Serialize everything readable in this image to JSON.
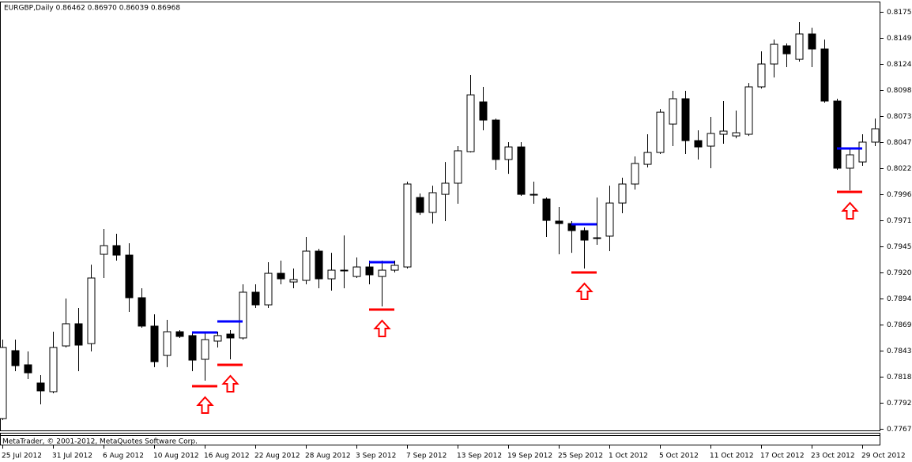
{
  "chart_data": {
    "type": "candlestick",
    "title": "EURGBP,Daily  0.86462 0.86970 0.86039 0.86968",
    "footer": "MetaTrader, © 2001-2012, MetaQuotes Software Corp.",
    "categories": [
      "25 Jul 2012",
      null,
      null,
      null,
      "31 Jul 2012",
      null,
      null,
      null,
      "6 Aug 2012",
      null,
      null,
      null,
      "10 Aug 2012",
      null,
      null,
      null,
      "16 Aug 2012",
      null,
      null,
      null,
      "22 Aug 2012",
      null,
      null,
      null,
      "28 Aug 2012",
      null,
      null,
      null,
      "3 Sep 2012",
      null,
      null,
      null,
      "7 Sep 2012",
      null,
      null,
      null,
      "13 Sep 2012",
      null,
      null,
      null,
      "19 Sep 2012",
      null,
      null,
      null,
      "25 Sep 2012",
      null,
      null,
      null,
      "1 Oct 2012",
      null,
      null,
      null,
      "5 Oct 2012",
      null,
      null,
      null,
      "11 Oct 2012",
      null,
      null,
      null,
      "17 Oct 2012",
      null,
      null,
      null,
      "23 Oct 2012",
      null,
      null,
      null,
      "29 Oct 2012",
      null
    ],
    "open": [
      0.7777,
      0.78435,
      0.78296,
      0.78118,
      0.78033,
      0.78481,
      0.78698,
      0.78504,
      0.79378,
      0.79463,
      0.7937,
      0.78953,
      0.78675,
      0.78388,
      0.7862,
      0.78582,
      0.7835,
      0.78528,
      0.78597,
      0.78559,
      0.79007,
      0.78883,
      0.79192,
      0.79107,
      0.79123,
      0.79409,
      0.79138,
      0.79216,
      0.79161,
      0.79254,
      0.79161,
      0.79223,
      0.79254,
      0.79934,
      0.79788,
      0.79965,
      0.80074,
      0.80383,
      0.8087,
      0.80692,
      0.80306,
      0.80429,
      0.79965,
      0.79919,
      0.79703,
      0.79679,
      0.7961,
      0.79533,
      0.79556,
      0.7988,
      0.80066,
      0.80259,
      0.80375,
      0.80653,
      0.80901,
      0.80491,
      0.80437,
      0.80553,
      0.80537,
      0.80553,
      0.81017,
      0.81241,
      0.81419,
      0.81287,
      0.81535,
      0.81388,
      0.80878,
      0.80221,
      0.80282,
      0.80476
    ],
    "high": [
      0.78543,
      0.78543,
      0.78427,
      0.78195,
      0.7862,
      0.78945,
      0.78852,
      0.79277,
      0.79625,
      0.79579,
      0.79486,
      0.79046,
      0.7879,
      0.78736,
      0.78636,
      0.7862,
      0.7862,
      0.7862,
      0.78636,
      0.79084,
      0.79084,
      0.79301,
      0.79316,
      0.79239,
      0.79548,
      0.79432,
      0.79393,
      0.79563,
      0.79347,
      0.79316,
      0.79316,
      0.79316,
      0.80089,
      0.79973,
      0.8005,
      0.80282,
      0.80437,
      0.81133,
      0.81017,
      0.80707,
      0.80476,
      0.80476,
      0.80089,
      0.79934,
      0.79842,
      0.79703,
      0.79641,
      0.79934,
      0.8005,
      0.80128,
      0.80336,
      0.80553,
      0.808,
      0.80978,
      0.80978,
      0.80592,
      0.80723,
      0.80878,
      0.80785,
      0.81055,
      0.81365,
      0.8148,
      0.81442,
      0.81651,
      0.81596,
      0.8148,
      0.80901,
      0.80414,
      0.80553,
      0.80707
    ],
    "low": [
      0.77755,
      0.78234,
      0.78157,
      0.77909,
      0.78017,
      0.78466,
      0.78234,
      0.78427,
      0.79146,
      0.79316,
      0.78814,
      0.78659,
      0.78273,
      0.78273,
      0.78559,
      0.78234,
      0.78141,
      0.78466,
      0.7835,
      0.78543,
      0.78852,
      0.78852,
      0.79084,
      0.79046,
      0.79084,
      0.79046,
      0.79022,
      0.79046,
      0.79146,
      0.79084,
      0.78868,
      0.792,
      0.79239,
      0.79764,
      0.79679,
      0.79703,
      0.79873,
      0.80375,
      0.80592,
      0.80205,
      0.80166,
      0.7995,
      0.79873,
      0.79548,
      0.79378,
      0.79393,
      0.79239,
      0.79471,
      0.79409,
      0.7978,
      0.80012,
      0.80228,
      0.8036,
      0.80437,
      0.8036,
      0.80306,
      0.80221,
      0.8046,
      0.80514,
      0.80537,
      0.81001,
      0.81109,
      0.8121,
      0.81264,
      0.8121,
      0.80862,
      0.80205,
      0.80004,
      0.80244,
      0.80437
    ],
    "close": [
      0.78466,
      0.78288,
      0.78218,
      0.78041,
      0.78466,
      0.78698,
      0.78489,
      0.79146,
      0.79463,
      0.7937,
      0.78953,
      0.78675,
      0.78327,
      0.7862,
      0.78574,
      0.78342,
      0.78543,
      0.78582,
      0.78559,
      0.79007,
      0.78883,
      0.79192,
      0.79138,
      0.79131,
      0.79409,
      0.79138,
      0.79223,
      0.79223,
      0.79254,
      0.79177,
      0.79223,
      0.7927,
      0.80066,
      0.79788,
      0.79981,
      0.80074,
      0.80391,
      0.80939,
      0.80692,
      0.80306,
      0.80429,
      0.79965,
      0.79965,
      0.7971,
      0.79679,
      0.7961,
      0.79517,
      0.7954,
      0.7988,
      0.80066,
      0.80267,
      0.80375,
      0.80769,
      0.80901,
      0.80491,
      0.80429,
      0.80561,
      0.80584,
      0.80568,
      0.81017,
      0.81241,
      0.81434,
      0.81341,
      0.81535,
      0.81388,
      0.80878,
      0.80221,
      0.80352,
      0.80476,
      0.80607
    ],
    "bull_color": "#ffffff",
    "bear_color": "#000000",
    "signals": [
      {
        "bar": 15,
        "entry": 0.78613,
        "stop": 0.78087
      },
      {
        "bar": 17,
        "entry": 0.78721,
        "stop": 0.78296
      },
      {
        "bar": 29,
        "entry": 0.79301,
        "stop": 0.78837
      },
      {
        "bar": 45,
        "entry": 0.79672,
        "stop": 0.792
      },
      {
        "bar": 66,
        "entry": 0.80414,
        "stop": 0.79989
      }
    ],
    "entry_color": "#0000ff",
    "stop_color": "#ff0000",
    "ylim": [
      0.77654,
      0.81852
    ],
    "yticks": [
      {
        "value": 0.8175,
        "label": "0.81750"
      },
      0.81495,
      {
        "value": 0.8124,
        "label": "0.81240"
      },
      0.80985,
      {
        "value": 0.8073,
        "label": "0.80730"
      },
      0.80475,
      {
        "value": 0.8022,
        "label": "0.80220"
      },
      0.79965,
      {
        "value": 0.7971,
        "label": "0.79710"
      },
      0.79455,
      {
        "value": 0.792,
        "label": "0.79200"
      },
      0.78945,
      {
        "value": 0.7869,
        "label": "0.78690"
      },
      0.78435,
      {
        "value": 0.7818,
        "label": "0.78180"
      },
      0.77925,
      {
        "value": 0.7767,
        "label": "0.77670"
      }
    ]
  }
}
